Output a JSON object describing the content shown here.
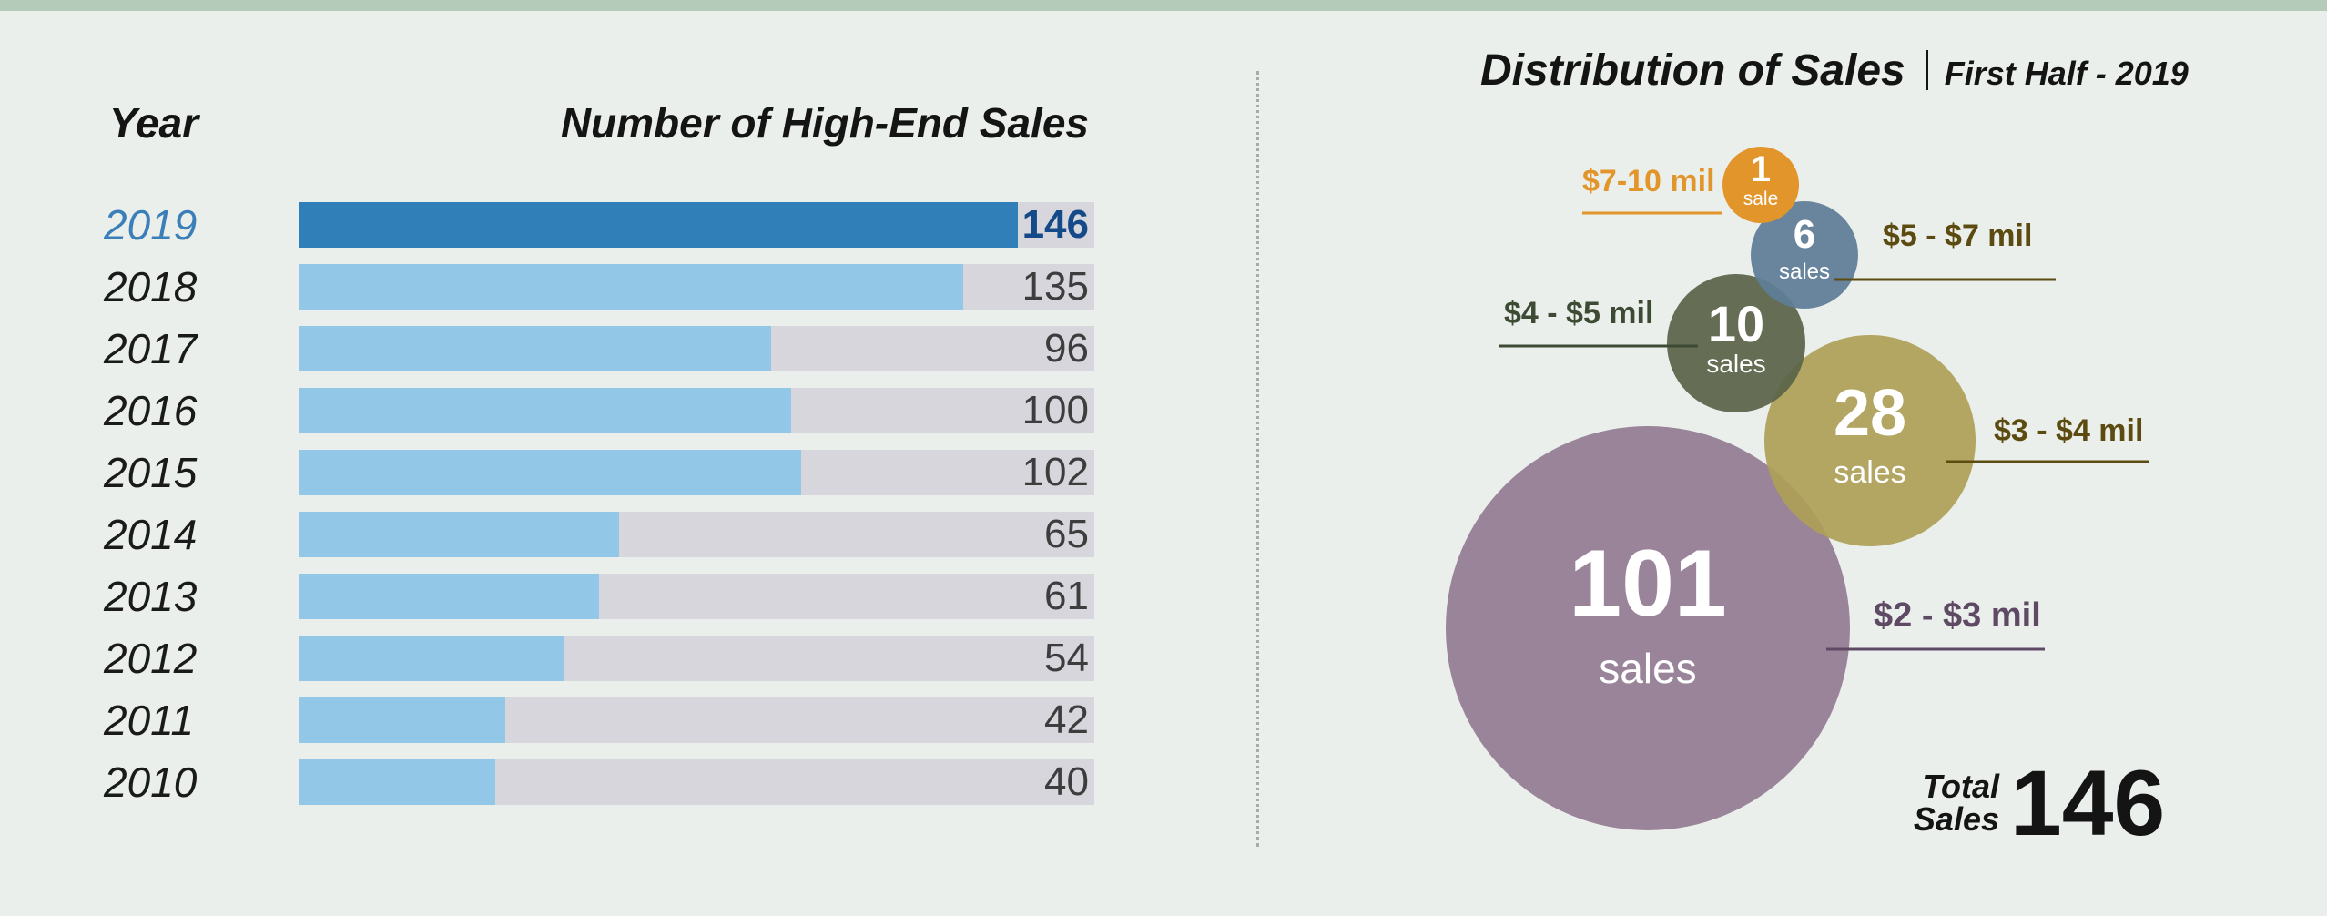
{
  "bar_chart": {
    "header_year": "Year",
    "header_sales": "Number of High-End Sales"
  },
  "bubble_chart": {
    "title": "Distribution of Sales",
    "subtitle": "First Half - 2019",
    "total_label_line1": "Total",
    "total_label_line2": "Sales",
    "total_value": "146"
  },
  "colors": {
    "bar_current": "#317fb8",
    "bar_past": "#93c7e7",
    "bar_track": "#d6d6dc",
    "year_current": "#3b7fb9"
  },
  "chart_data": [
    {
      "type": "bar",
      "orientation": "horizontal",
      "title": "Number of High-End Sales",
      "xlabel": "",
      "ylabel": "Year",
      "xlim": [
        0,
        146
      ],
      "categories": [
        "2019",
        "2018",
        "2017",
        "2016",
        "2015",
        "2014",
        "2013",
        "2012",
        "2011",
        "2010"
      ],
      "values": [
        146,
        135,
        96,
        100,
        102,
        65,
        61,
        54,
        42,
        40
      ],
      "highlight": "2019"
    },
    {
      "type": "bubble",
      "title": "Distribution of Sales",
      "subtitle": "First Half - 2019",
      "series": [
        {
          "name": "$7-10 mil",
          "value": 1,
          "unit": "sale",
          "color": "#e1952a",
          "label_color": "#e1952a"
        },
        {
          "name": "$5 - $7 mil",
          "value": 6,
          "unit": "sales",
          "color": "#5e7d97",
          "label_color": "#5c4b10"
        },
        {
          "name": "$4 - $5 mil",
          "value": 10,
          "unit": "sales",
          "color": "#5a6449",
          "label_color": "#3d4a34"
        },
        {
          "name": "$3 - $4 mil",
          "value": 28,
          "unit": "sales",
          "color": "#ae9f57",
          "label_color": "#5c4b10"
        },
        {
          "name": "$2 - $3 mil",
          "value": 101,
          "unit": "sales",
          "color": "#937c92",
          "label_color": "#5e4a64"
        }
      ],
      "total": 146
    }
  ]
}
